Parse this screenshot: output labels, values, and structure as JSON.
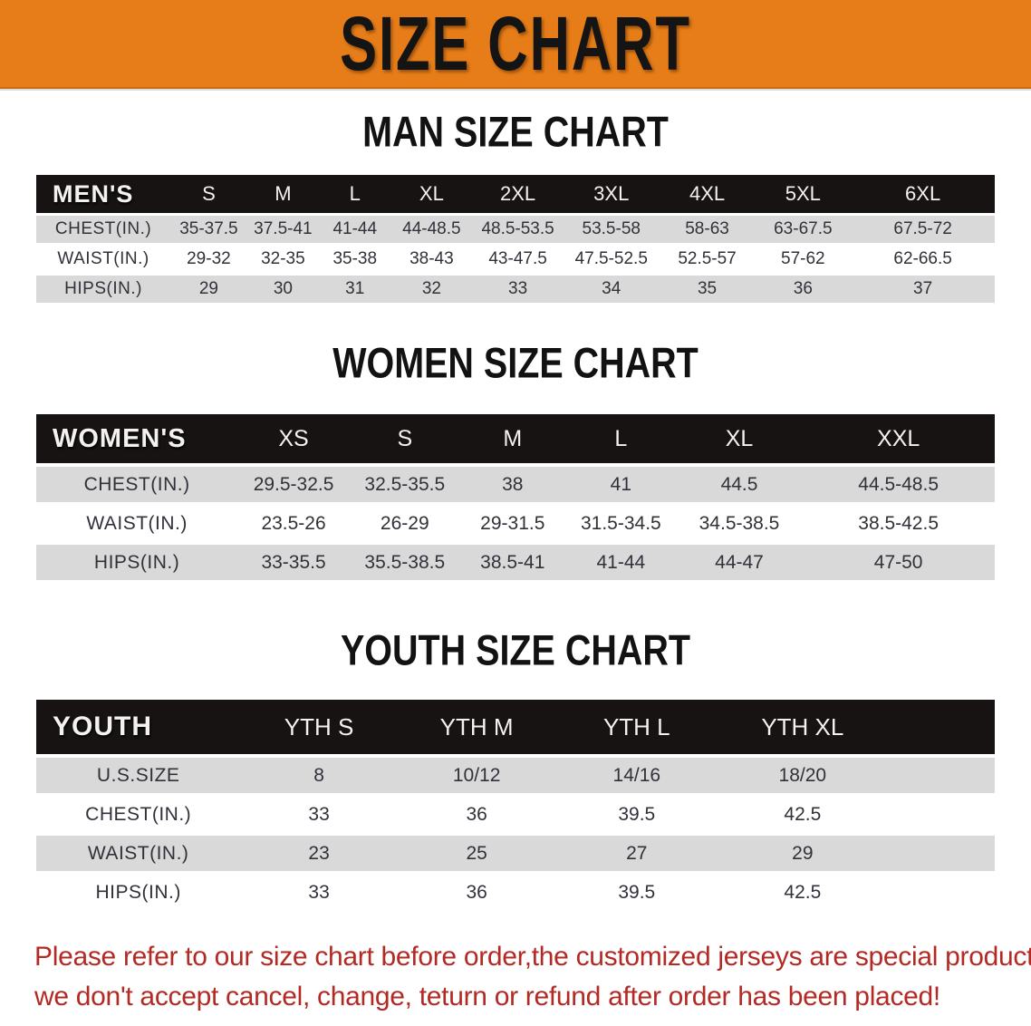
{
  "banner": {
    "title": "SIZE CHART",
    "bg_color": "#e67d18",
    "text_color": "#141414"
  },
  "sections": [
    {
      "id": "men",
      "heading": "MAN SIZE CHART",
      "header_label": "MEN'S",
      "columns": [
        "S",
        "M",
        "L",
        "XL",
        "2XL",
        "3XL",
        "4XL",
        "5XL",
        "6XL"
      ],
      "rows": [
        {
          "label": "CHEST(IN.)",
          "values": [
            "35-37.5",
            "37.5-41",
            "41-44",
            "44-48.5",
            "48.5-53.5",
            "53.5-58",
            "58-63",
            "63-67.5",
            "67.5-72"
          ]
        },
        {
          "label": "WAIST(IN.)",
          "values": [
            "29-32",
            "32-35",
            "35-38",
            "38-43",
            "43-47.5",
            "47.5-52.5",
            "52.5-57",
            "57-62",
            "62-66.5"
          ]
        },
        {
          "label": "HIPS(IN.)",
          "values": [
            "29",
            "30",
            "31",
            "32",
            "33",
            "34",
            "35",
            "36",
            "37"
          ]
        }
      ]
    },
    {
      "id": "women",
      "heading": "WOMEN SIZE CHART",
      "header_label": "WOMEN'S",
      "columns": [
        "XS",
        "S",
        "M",
        "L",
        "XL",
        "XXL"
      ],
      "rows": [
        {
          "label": "CHEST(IN.)",
          "values": [
            "29.5-32.5",
            "32.5-35.5",
            "38",
            "41",
            "44.5",
            "44.5-48.5"
          ]
        },
        {
          "label": "WAIST(IN.)",
          "values": [
            "23.5-26",
            "26-29",
            "29-31.5",
            "31.5-34.5",
            "34.5-38.5",
            "38.5-42.5"
          ]
        },
        {
          "label": "HIPS(IN.)",
          "values": [
            "33-35.5",
            "35.5-38.5",
            "38.5-41",
            "41-44",
            "44-47",
            "47-50"
          ]
        }
      ]
    },
    {
      "id": "youth",
      "heading": "YOUTH SIZE CHART",
      "header_label": "YOUTH",
      "columns": [
        "YTH S",
        "YTH M",
        "YTH L",
        "YTH XL"
      ],
      "rows": [
        {
          "label": "U.S.SIZE",
          "values": [
            "8",
            "10/12",
            "14/16",
            "18/20"
          ]
        },
        {
          "label": "CHEST(IN.)",
          "values": [
            "33",
            "36",
            "39.5",
            "42.5"
          ]
        },
        {
          "label": "WAIST(IN.)",
          "values": [
            "23",
            "25",
            "27",
            "29"
          ]
        },
        {
          "label": "HIPS(IN.)",
          "values": [
            "33",
            "36",
            "39.5",
            "42.5"
          ]
        }
      ]
    }
  ],
  "table_colors": {
    "header_bg": "#161312",
    "header_text": "#f4f2ef",
    "row_gray": "#d9d9d9",
    "row_white": "#ffffff",
    "cell_text": "#31313a"
  },
  "disclaimer": {
    "line1": "Please refer to our size chart before order,the customized jerseys are special products,",
    "line2": "we don't accept cancel, change, teturn or refund after order has been placed!",
    "color": "#b22a23"
  }
}
